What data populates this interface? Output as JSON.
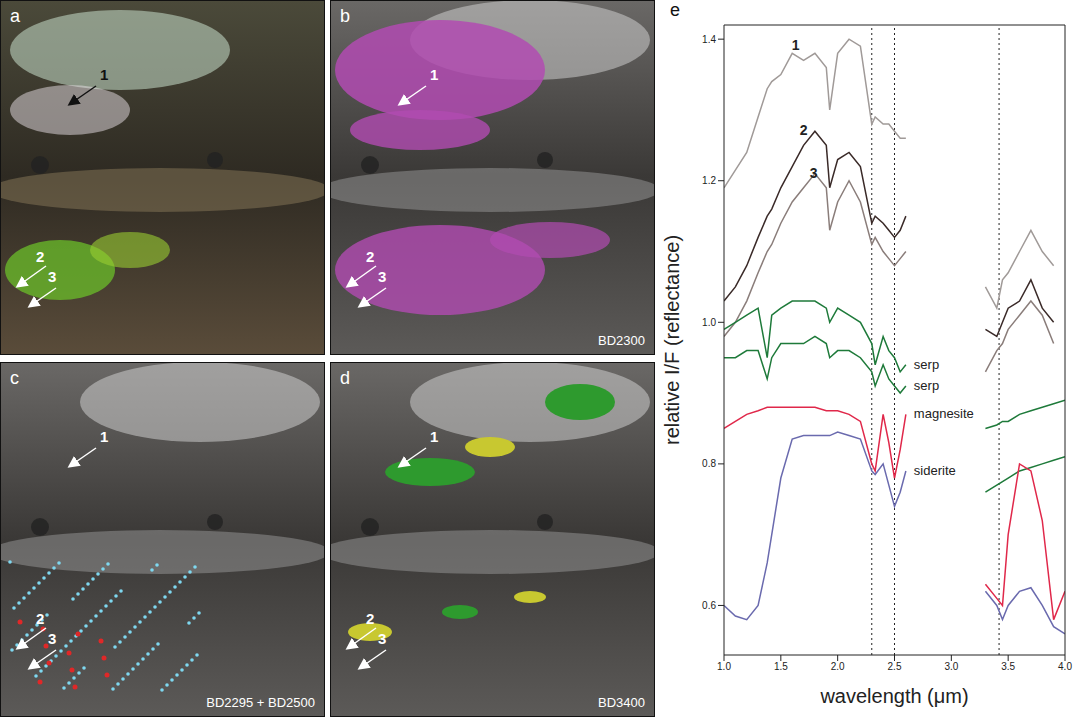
{
  "panels": [
    {
      "letter": "a",
      "arrows": [
        "1",
        "2",
        "3"
      ]
    },
    {
      "letter": "b",
      "arrows": [
        "1",
        "2",
        "3"
      ],
      "band_depth": "BD2300"
    },
    {
      "letter": "c",
      "arrows": [
        "1",
        "2",
        "3"
      ],
      "band_depth": "BD2295 + BD2500"
    },
    {
      "letter": "d",
      "arrows": [
        "1",
        "2",
        "3"
      ],
      "band_depth": "BD3400"
    }
  ],
  "chart_data": {
    "type": "line",
    "panel_label": "e",
    "x_label": "wavelength (μm)",
    "y_label": "relative I/F (reflectance)",
    "x": [
      1.0,
      1.1,
      1.2,
      1.3,
      1.38,
      1.42,
      1.5,
      1.6,
      1.7,
      1.8,
      1.9,
      1.93,
      2.0,
      2.1,
      2.2,
      2.3,
      2.33,
      2.4,
      2.45,
      2.5,
      2.55,
      2.6,
      2.95,
      3.3,
      3.4,
      3.45,
      3.5,
      3.6,
      3.7,
      3.8,
      3.9,
      4.0
    ],
    "xlim": [
      1,
      4
    ],
    "xticks": [
      {
        "value": 1,
        "label": "1.0"
      },
      1.5,
      {
        "value": 2,
        "label": "2.0"
      },
      2.5,
      {
        "value": 3,
        "label": "3.0"
      },
      3.5,
      {
        "value": 4,
        "label": "4.0"
      }
    ],
    "ylim": [
      0.53,
      1.42
    ],
    "yticks": [
      0.6,
      0.8,
      {
        "value": 1,
        "label": "1.0"
      },
      1.2,
      1.4
    ],
    "vlines": [
      2.3,
      2.5,
      3.42
    ],
    "series": [
      {
        "name": "1",
        "color": "#a09a98",
        "values": [
          1.19,
          1.215,
          1.24,
          1.29,
          1.33,
          1.34,
          1.35,
          1.38,
          1.37,
          1.38,
          1.36,
          1.3,
          1.38,
          1.4,
          1.39,
          1.28,
          1.29,
          1.28,
          1.28,
          1.27,
          1.26,
          1.26,
          null,
          1.05,
          1.02,
          1.06,
          1.07,
          1.1,
          1.13,
          1.1,
          1.08,
          null
        ]
      },
      {
        "name": "2",
        "color": "#3a2a28",
        "values": [
          1.03,
          1.05,
          1.08,
          1.12,
          1.15,
          1.16,
          1.19,
          1.22,
          1.25,
          1.27,
          1.25,
          1.19,
          1.23,
          1.24,
          1.22,
          1.14,
          1.15,
          1.14,
          1.13,
          1.12,
          1.13,
          1.15,
          null,
          0.99,
          0.98,
          1.0,
          1.02,
          1.03,
          1.06,
          1.02,
          1.0,
          null
        ]
      },
      {
        "name": "3",
        "color": "#8a7d7a",
        "values": [
          0.98,
          1.0,
          1.03,
          1.07,
          1.1,
          1.11,
          1.14,
          1.17,
          1.19,
          1.21,
          1.19,
          1.13,
          1.17,
          1.2,
          1.17,
          1.11,
          1.12,
          1.1,
          1.09,
          1.08,
          1.09,
          1.1,
          null,
          0.93,
          0.96,
          0.97,
          0.99,
          1.01,
          1.03,
          1.01,
          0.97,
          null
        ]
      },
      {
        "name": "serp",
        "color": "#1e7a3a",
        "values": [
          0.99,
          1.0,
          1.01,
          1.02,
          0.95,
          1.01,
          1.02,
          1.03,
          1.03,
          1.03,
          1.02,
          1.0,
          1.02,
          1.01,
          1.0,
          0.97,
          0.94,
          0.98,
          0.96,
          0.95,
          0.93,
          0.94,
          null,
          0.85,
          0.855,
          0.86,
          0.86,
          0.87,
          0.875,
          0.88,
          0.885,
          0.89
        ]
      },
      {
        "name": "serp",
        "color": "#1e7a3a",
        "values": [
          0.95,
          0.95,
          0.96,
          0.96,
          0.92,
          0.95,
          0.97,
          0.97,
          0.97,
          0.98,
          0.97,
          0.95,
          0.96,
          0.96,
          0.95,
          0.93,
          0.91,
          0.94,
          0.92,
          0.91,
          0.9,
          0.91,
          null,
          0.76,
          0.77,
          0.775,
          0.78,
          0.79,
          0.795,
          0.8,
          0.805,
          0.81
        ]
      },
      {
        "name": "magnesite",
        "color": "#e0284a",
        "values": [
          0.85,
          0.86,
          0.87,
          0.875,
          0.88,
          0.88,
          0.88,
          0.88,
          0.88,
          0.88,
          0.875,
          0.875,
          0.875,
          0.87,
          0.86,
          0.8,
          0.79,
          0.87,
          0.83,
          0.78,
          0.82,
          0.87,
          null,
          0.63,
          0.61,
          0.6,
          0.7,
          0.8,
          0.79,
          0.72,
          0.58,
          0.62
        ]
      },
      {
        "name": "siderite",
        "color": "#6a6aae",
        "values": [
          0.6,
          0.585,
          0.58,
          0.6,
          0.66,
          0.7,
          0.78,
          0.835,
          0.84,
          0.84,
          0.84,
          0.84,
          0.845,
          0.84,
          0.835,
          0.79,
          0.785,
          0.8,
          0.77,
          0.74,
          0.76,
          0.79,
          null,
          0.62,
          0.6,
          0.58,
          0.6,
          0.62,
          0.625,
          0.6,
          0.57,
          0.56
        ]
      }
    ]
  }
}
